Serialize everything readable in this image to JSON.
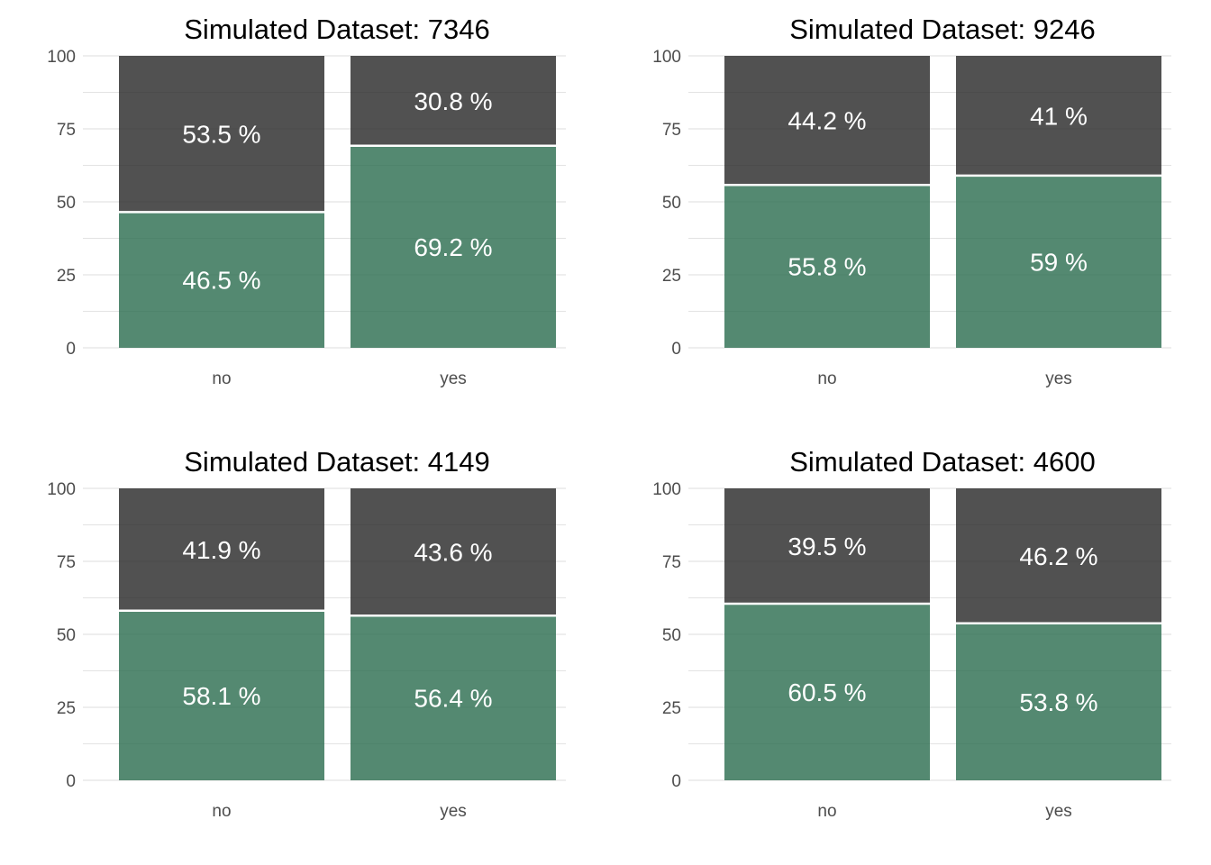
{
  "chart_data": [
    {
      "type": "bar",
      "stacked": true,
      "title": "Simulated Dataset: 7346",
      "categories": [
        "no",
        "yes"
      ],
      "ylim": [
        0,
        100
      ],
      "yticks": [
        "0",
        "25",
        "50",
        "75",
        "100"
      ],
      "grid": true,
      "series": [
        {
          "values": [
            46.5,
            69.2
          ],
          "labels": [
            "46.5 %",
            "69.2 %"
          ],
          "color": "#2e6f52"
        },
        {
          "values": [
            53.5,
            30.8
          ],
          "labels": [
            "53.5 %",
            "30.8 %"
          ],
          "color": "#2b2b2b"
        }
      ]
    },
    {
      "type": "bar",
      "stacked": true,
      "title": "Simulated Dataset: 9246",
      "categories": [
        "no",
        "yes"
      ],
      "ylim": [
        0,
        100
      ],
      "yticks": [
        "0",
        "25",
        "50",
        "75",
        "100"
      ],
      "grid": true,
      "series": [
        {
          "values": [
            55.8,
            59
          ],
          "labels": [
            "55.8 %",
            "59 %"
          ],
          "color": "#2e6f52"
        },
        {
          "values": [
            44.2,
            41
          ],
          "labels": [
            "44.2 %",
            "41 %"
          ],
          "color": "#2b2b2b"
        }
      ]
    },
    {
      "type": "bar",
      "stacked": true,
      "title": "Simulated Dataset: 4149",
      "categories": [
        "no",
        "yes"
      ],
      "ylim": [
        0,
        100
      ],
      "yticks": [
        "0",
        "25",
        "50",
        "75",
        "100"
      ],
      "grid": true,
      "series": [
        {
          "values": [
            58.1,
            56.4
          ],
          "labels": [
            "58.1 %",
            "56.4 %"
          ],
          "color": "#2e6f52"
        },
        {
          "values": [
            41.9,
            43.6
          ],
          "labels": [
            "41.9 %",
            "43.6 %"
          ],
          "color": "#2b2b2b"
        }
      ]
    },
    {
      "type": "bar",
      "stacked": true,
      "title": "Simulated Dataset: 4600",
      "categories": [
        "no",
        "yes"
      ],
      "ylim": [
        0,
        100
      ],
      "yticks": [
        "0",
        "25",
        "50",
        "75",
        "100"
      ],
      "grid": true,
      "series": [
        {
          "values": [
            60.5,
            53.8
          ],
          "labels": [
            "60.5 %",
            "53.8 %"
          ],
          "color": "#2e6f52"
        },
        {
          "values": [
            39.5,
            46.2
          ],
          "labels": [
            "39.5 %",
            "46.2 %"
          ],
          "color": "#2b2b2b"
        }
      ]
    }
  ]
}
